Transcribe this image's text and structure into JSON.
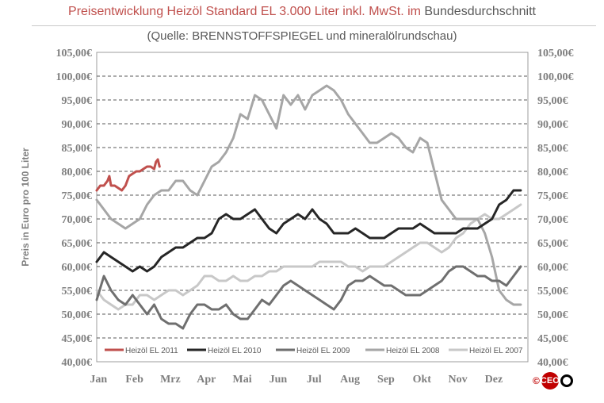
{
  "header": {
    "title_part1": "Preisentwicklung  Heizöl  Standard  EL  3.000  Liter  inkl.  MwSt.  im",
    "title_part2": "Bundesdurchschnitt",
    "subtitle": "(Quelle:  BRENNSTOFFSPIEGEL  und  mineralölrundschau)"
  },
  "logo": {
    "copyright_symbol": "©",
    "text": "CEO"
  },
  "colors": {
    "title_accent": "#c0504d",
    "series_2011": "#c0504d",
    "series_2010": "#262626",
    "series_2009": "#6f6f6f",
    "series_2008": "#a6a6a6",
    "series_2007": "#c8c8c8"
  },
  "chart_data": {
    "type": "line",
    "title": "Preisentwicklung Heizöl Standard EL 3.000 Liter inkl. MwSt. im Bundesdurchschnitt",
    "subtitle": "(Quelle: BRENNSTOFFSPIEGEL und mineralölrundschau)",
    "xlabel": "",
    "ylabel": "Preis in Euro pro 100 Liter",
    "ylim": [
      40,
      105
    ],
    "grid": true,
    "legend_position": "bottom-left",
    "y_ticks": [
      "40,00€",
      "45,00€",
      "50,00€",
      "55,00€",
      "60,00€",
      "65,00€",
      "70,00€",
      "75,00€",
      "80,00€",
      "85,00€",
      "90,00€",
      "95,00€",
      "100,00€",
      "105,00€"
    ],
    "categories": [
      "Jan",
      "Feb",
      "Mrz",
      "Apr",
      "Mai",
      "Jun",
      "Jul",
      "Aug",
      "Sep",
      "Okt",
      "Nov",
      "Dez"
    ],
    "series": [
      {
        "name": "Heizöl EL 2011",
        "x": [
          0.0,
          0.1,
          0.2,
          0.3,
          0.35,
          0.4,
          0.5,
          0.6,
          0.7,
          0.8,
          0.9,
          1.0,
          1.1,
          1.2,
          1.3,
          1.4,
          1.5,
          1.6,
          1.65,
          1.7,
          1.75
        ],
        "values": [
          76,
          77,
          77,
          78,
          79,
          77,
          77,
          76.5,
          76,
          77,
          79,
          79.5,
          80,
          80,
          80.5,
          81,
          81,
          80.5,
          82,
          82.5,
          81
        ]
      },
      {
        "name": "Heizöl EL 2010",
        "x": [
          0,
          0.2,
          0.4,
          0.6,
          0.8,
          1.0,
          1.2,
          1.4,
          1.6,
          1.8,
          2.0,
          2.2,
          2.4,
          2.6,
          2.8,
          3.0,
          3.2,
          3.4,
          3.6,
          3.8,
          4.0,
          4.2,
          4.4,
          4.6,
          4.8,
          5.0,
          5.2,
          5.4,
          5.6,
          5.8,
          6.0,
          6.2,
          6.4,
          6.6,
          6.8,
          7.0,
          7.2,
          7.4,
          7.6,
          7.8,
          8.0,
          8.2,
          8.4,
          8.6,
          8.8,
          9.0,
          9.2,
          9.4,
          9.6,
          9.8,
          10.0,
          10.2,
          10.4,
          10.6,
          10.8,
          11.0,
          11.2,
          11.4,
          11.6,
          11.8
        ],
        "values": [
          61,
          63,
          62,
          61,
          60,
          59,
          60,
          59,
          60,
          62,
          63,
          64,
          64,
          65,
          66,
          66,
          67,
          70,
          71,
          70,
          70,
          71,
          72,
          70,
          68,
          67,
          69,
          70,
          71,
          70,
          72,
          70,
          69,
          67,
          67,
          67,
          68,
          67,
          66,
          66,
          66,
          67,
          68,
          68,
          68,
          69,
          68,
          67,
          67,
          67,
          67,
          68,
          68,
          68,
          69,
          70,
          73,
          74,
          76,
          76
        ]
      },
      {
        "name": "Heizöl EL 2009",
        "x": [
          0,
          0.2,
          0.4,
          0.6,
          0.8,
          1.0,
          1.2,
          1.4,
          1.6,
          1.8,
          2.0,
          2.2,
          2.4,
          2.6,
          2.8,
          3.0,
          3.2,
          3.4,
          3.6,
          3.8,
          4.0,
          4.2,
          4.4,
          4.6,
          4.8,
          5.0,
          5.2,
          5.4,
          5.6,
          5.8,
          6.0,
          6.2,
          6.4,
          6.6,
          6.8,
          7.0,
          7.2,
          7.4,
          7.6,
          7.8,
          8.0,
          8.2,
          8.4,
          8.6,
          8.8,
          9.0,
          9.2,
          9.4,
          9.6,
          9.8,
          10.0,
          10.2,
          10.4,
          10.6,
          10.8,
          11.0,
          11.2,
          11.4,
          11.6,
          11.8
        ],
        "values": [
          53,
          58,
          55,
          53,
          52,
          54,
          52,
          50,
          52,
          49,
          48,
          48,
          47,
          50,
          52,
          52,
          51,
          51,
          52,
          50,
          49,
          49,
          51,
          53,
          52,
          54,
          56,
          57,
          56,
          55,
          54,
          53,
          52,
          51,
          53,
          56,
          57,
          57,
          58,
          57,
          56,
          56,
          55,
          54,
          54,
          54,
          55,
          56,
          57,
          59,
          60,
          60,
          59,
          58,
          58,
          57,
          57,
          56,
          58,
          60
        ]
      },
      {
        "name": "Heizöl EL 2008",
        "x": [
          0,
          0.2,
          0.4,
          0.6,
          0.8,
          1.0,
          1.2,
          1.4,
          1.6,
          1.8,
          2.0,
          2.2,
          2.4,
          2.6,
          2.8,
          3.0,
          3.2,
          3.4,
          3.6,
          3.8,
          4.0,
          4.2,
          4.4,
          4.6,
          4.8,
          5.0,
          5.2,
          5.4,
          5.6,
          5.8,
          6.0,
          6.2,
          6.4,
          6.6,
          6.8,
          7.0,
          7.2,
          7.4,
          7.6,
          7.8,
          8.0,
          8.2,
          8.4,
          8.6,
          8.8,
          9.0,
          9.2,
          9.4,
          9.6,
          9.8,
          10.0,
          10.2,
          10.4,
          10.6,
          10.8,
          11.0,
          11.2,
          11.4,
          11.6,
          11.8
        ],
        "values": [
          74,
          72,
          70,
          69,
          68,
          69,
          70,
          73,
          75,
          76,
          76,
          78,
          78,
          76,
          75,
          78,
          81,
          82,
          84,
          87,
          92,
          91,
          96,
          95,
          92,
          89,
          96,
          94,
          96,
          93,
          96,
          97,
          98,
          97,
          95,
          92,
          90,
          88,
          86,
          86,
          87,
          88,
          87,
          85,
          84,
          87,
          86,
          80,
          74,
          72,
          70,
          70,
          70,
          70,
          67,
          62,
          55,
          53,
          52,
          52
        ]
      },
      {
        "name": "Heizöl EL 2007",
        "x": [
          0,
          0.2,
          0.4,
          0.6,
          0.8,
          1.0,
          1.2,
          1.4,
          1.6,
          1.8,
          2.0,
          2.2,
          2.4,
          2.6,
          2.8,
          3.0,
          3.2,
          3.4,
          3.6,
          3.8,
          4.0,
          4.2,
          4.4,
          4.6,
          4.8,
          5.0,
          5.2,
          5.4,
          5.6,
          5.8,
          6.0,
          6.2,
          6.4,
          6.6,
          6.8,
          7.0,
          7.2,
          7.4,
          7.6,
          7.8,
          8.0,
          8.2,
          8.4,
          8.6,
          8.8,
          9.0,
          9.2,
          9.4,
          9.6,
          9.8,
          10.0,
          10.2,
          10.4,
          10.6,
          10.8,
          11.0,
          11.2,
          11.4,
          11.6,
          11.8
        ],
        "values": [
          55,
          53,
          52,
          51,
          52,
          52,
          54,
          54,
          53,
          54,
          55,
          55,
          54,
          55,
          56,
          58,
          58,
          57,
          57,
          58,
          57,
          57,
          58,
          58,
          59,
          59,
          60,
          60,
          60,
          60,
          60,
          61,
          61,
          61,
          61,
          60,
          60,
          59,
          60,
          60,
          60,
          61,
          62,
          63,
          64,
          65,
          65,
          64,
          63,
          64,
          66,
          67,
          69,
          70,
          71,
          70,
          70,
          71,
          72,
          73
        ]
      }
    ]
  }
}
